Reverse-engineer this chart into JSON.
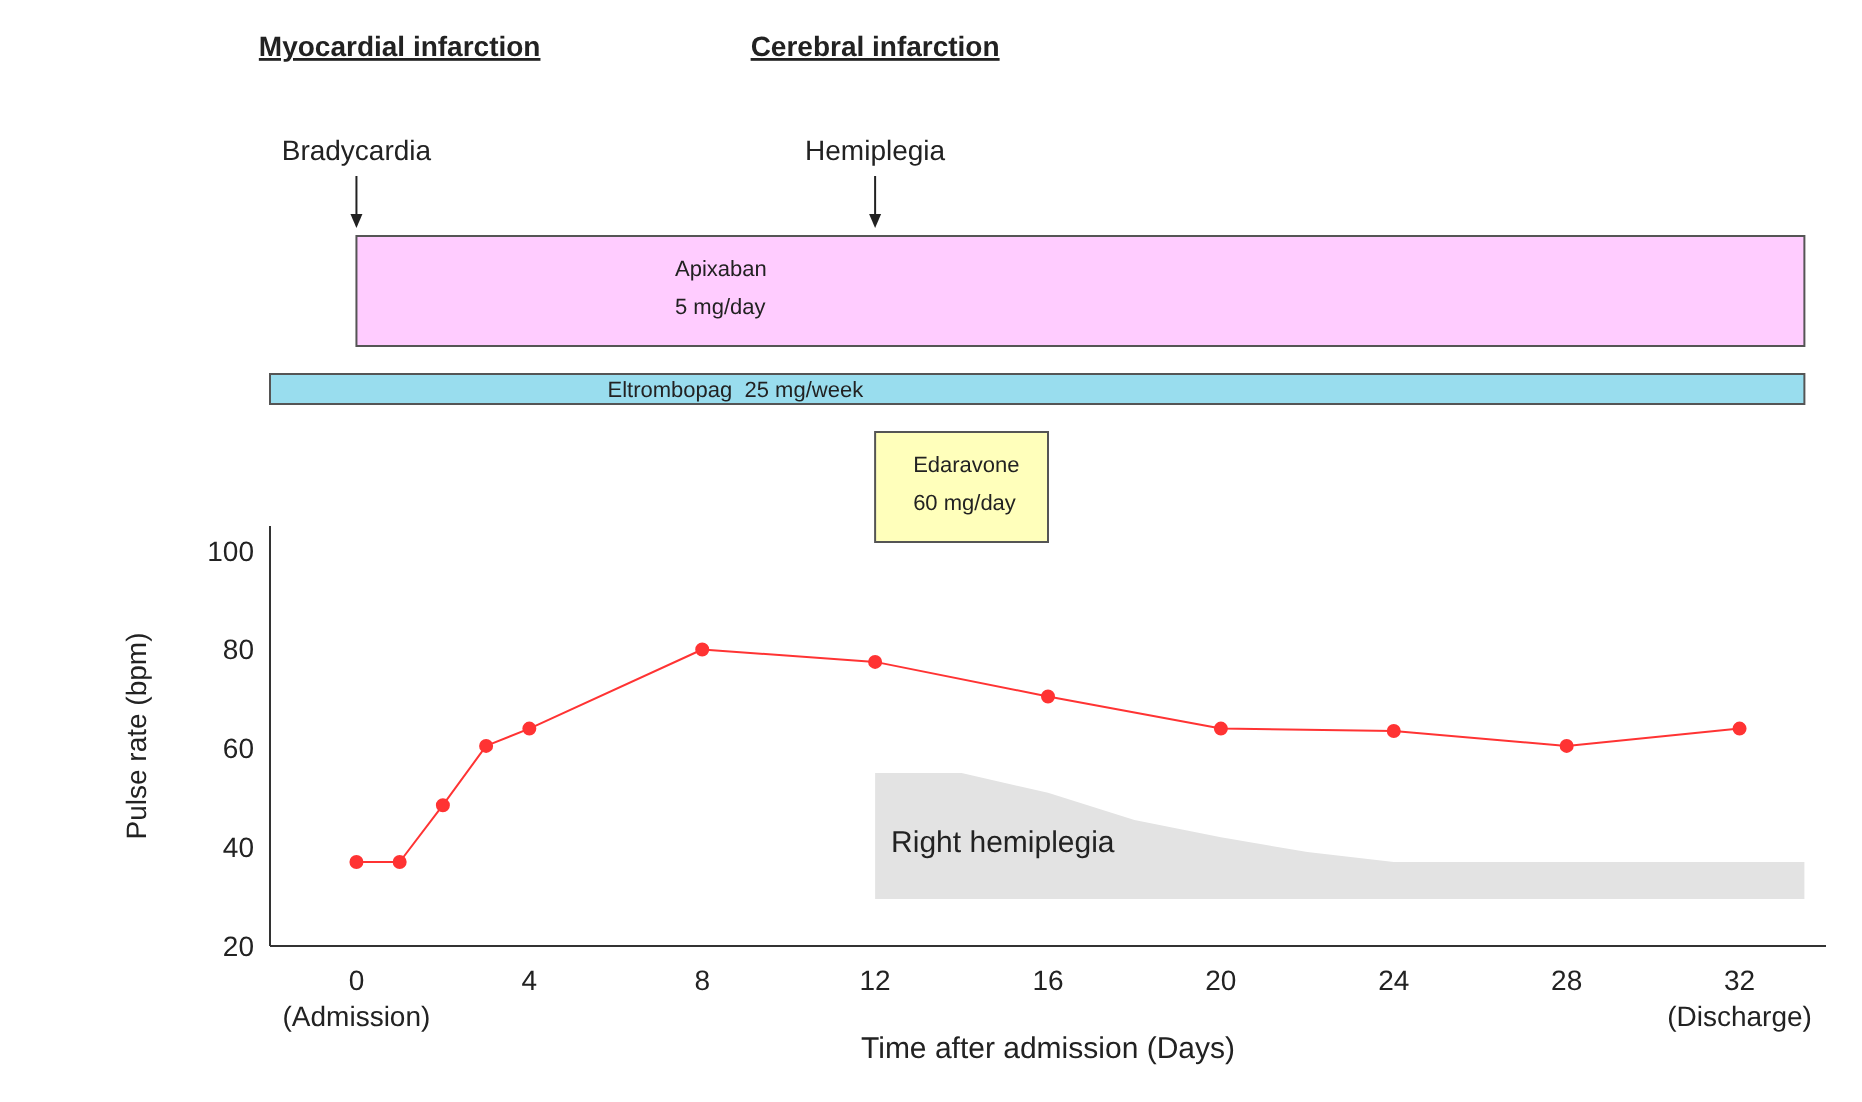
{
  "chart_data": {
    "type": "line",
    "xlabel": "Time after admission (Days)",
    "ylabel": "Pulse rate (bpm)",
    "xlim": [
      -2,
      34
    ],
    "ylim": [
      20,
      105
    ],
    "xticks": [
      {
        "value": 0,
        "label": "0\n(Admission)"
      },
      4,
      8,
      12,
      16,
      20,
      24,
      28,
      {
        "value": 32,
        "label": "32\n(Discharge)"
      }
    ],
    "yticks": [
      20,
      40,
      60,
      80,
      100
    ],
    "marker": "circle",
    "line_style": "solid",
    "series": [
      {
        "color": "#ff3333",
        "x": [
          0,
          1,
          2,
          3,
          4,
          8,
          12,
          16,
          20,
          24,
          28,
          32
        ],
        "values": [
          37,
          37,
          48.5,
          60.5,
          64,
          80,
          77.5,
          70.5,
          64,
          63.5,
          60.5,
          64
        ]
      }
    ],
    "annotations": [
      "Myocardial infarction",
      "Bradycardia",
      "Cerebral infarction",
      "Hemiplegia",
      "Apixaban\n5 mg/day",
      "Eltrombopag  25 mg/week",
      "Edaravone\n60 mg/day",
      "Right hemiplegia"
    ]
  }
}
